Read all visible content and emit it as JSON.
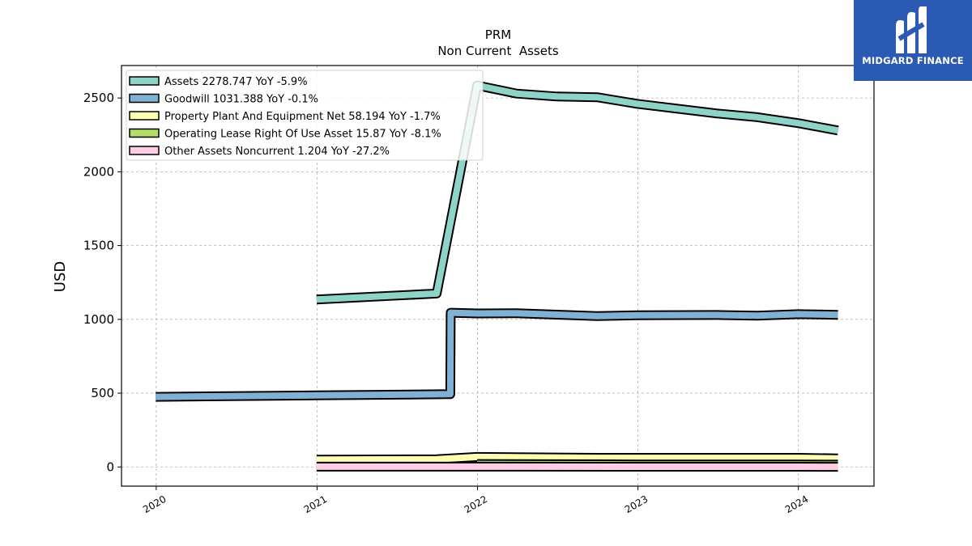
{
  "logo": {
    "text": "MIDGARD FINANCE",
    "icon": "midgard-logo-icon",
    "background": "#2a5ab3"
  },
  "chart_data": {
    "type": "line",
    "title": "PRM",
    "subtitle": "Non Current  Assets",
    "ylabel": "USD",
    "xlabel": "",
    "xlim": [
      "2019-10-14",
      "2024-06-21"
    ],
    "ylim": [
      -130,
      2720
    ],
    "x_ticks": [
      "2020",
      "2021",
      "2022",
      "2023",
      "2024"
    ],
    "y_ticks": [
      0,
      500,
      1000,
      1500,
      2000,
      2500
    ],
    "grid": true,
    "legend_position": "top-left",
    "series": [
      {
        "name": "Assets",
        "legend_label": "Assets  2278.747 YoY -5.9%",
        "color": "#8dd3c7",
        "points": [
          [
            "2020-12-31",
            1135
          ],
          [
            "2021-09-30",
            1175
          ],
          [
            "2021-12-31",
            2585
          ],
          [
            "2022-03-31",
            2530
          ],
          [
            "2022-06-30",
            2510
          ],
          [
            "2022-09-30",
            2505
          ],
          [
            "2022-12-31",
            2460
          ],
          [
            "2023-06-30",
            2395
          ],
          [
            "2023-09-30",
            2370
          ],
          [
            "2023-12-31",
            2330
          ],
          [
            "2024-03-31",
            2280
          ]
        ]
      },
      {
        "name": "Goodwill",
        "legend_label": "Goodwill  1031.388 YoY -0.1%",
        "color": "#80b1d3",
        "points": [
          [
            "2019-12-31",
            475
          ],
          [
            "2020-12-31",
            485
          ],
          [
            "2021-10-31",
            493
          ],
          [
            "2021-11-01",
            1045
          ],
          [
            "2021-12-31",
            1040
          ],
          [
            "2022-03-31",
            1042
          ],
          [
            "2022-09-30",
            1022
          ],
          [
            "2022-12-31",
            1028
          ],
          [
            "2023-06-30",
            1030
          ],
          [
            "2023-09-30",
            1025
          ],
          [
            "2023-12-31",
            1035
          ],
          [
            "2024-03-31",
            1031
          ]
        ]
      },
      {
        "name": "Property Plant And Equipment Net",
        "legend_label": "Property Plant And Equipment Net  58.194 YoY -1.7%",
        "color": "#ffffb3",
        "points": [
          [
            "2020-12-31",
            50
          ],
          [
            "2021-09-30",
            52
          ],
          [
            "2021-12-31",
            68
          ],
          [
            "2022-09-30",
            62
          ],
          [
            "2022-12-31",
            62
          ],
          [
            "2023-12-31",
            62
          ],
          [
            "2024-03-31",
            58
          ]
        ]
      },
      {
        "name": "Operating Lease Right Of Use Asset",
        "legend_label": "Operating Lease Right Of Use Asset  15.87 YoY -8.1%",
        "color": "#b3de69",
        "points": [
          [
            "2021-12-31",
            20
          ],
          [
            "2022-09-30",
            18
          ],
          [
            "2022-12-31",
            17
          ],
          [
            "2023-12-31",
            17
          ],
          [
            "2024-03-31",
            16
          ]
        ]
      },
      {
        "name": "Other Assets Noncurrent",
        "legend_label": "Other Assets Noncurrent  1.204 YoY -27.2%",
        "color": "#fccde5",
        "points": [
          [
            "2020-12-31",
            2
          ],
          [
            "2021-12-31",
            2
          ],
          [
            "2022-12-31",
            1.5
          ],
          [
            "2023-12-31",
            1.5
          ],
          [
            "2024-03-31",
            1.2
          ]
        ]
      }
    ]
  }
}
